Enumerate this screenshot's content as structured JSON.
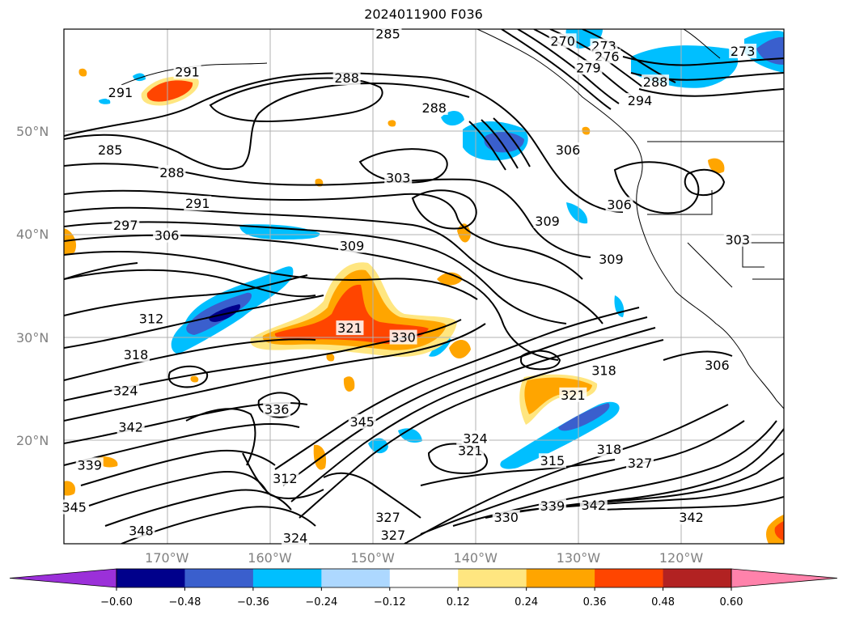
{
  "title": "2024011900 F036",
  "lat_labels": [
    "50°N",
    "40°N",
    "30°N",
    "20°N"
  ],
  "lon_labels": [
    "170°W",
    "160°W",
    "150°W",
    "140°W",
    "130°W",
    "120°W"
  ],
  "colorbar": {
    "ticks": [
      "−0.60",
      "−0.48",
      "−0.36",
      "−0.24",
      "−0.12",
      "0.12",
      "0.24",
      "0.36",
      "0.48",
      "0.60"
    ],
    "colors": [
      "#9b30d9",
      "#00008b",
      "#3a5fcd",
      "#00bfff",
      "#add8ff",
      "#ffffff",
      "#ffe680",
      "#ffa500",
      "#ff4500",
      "#b22222",
      "#ff82ab"
    ]
  },
  "contour_labels": [
    {
      "text": "285",
      "lat": 59.5,
      "lon": -148.5
    },
    {
      "text": "270",
      "lat": 58.8,
      "lon": -131.5
    },
    {
      "text": "273",
      "lat": 58.3,
      "lon": -127.5
    },
    {
      "text": "276",
      "lat": 57.3,
      "lon": -127.2
    },
    {
      "text": "279",
      "lat": 56.2,
      "lon": -129.0
    },
    {
      "text": "273",
      "lat": 57.8,
      "lon": -114.0
    },
    {
      "text": "288",
      "lat": 54.8,
      "lon": -122.5
    },
    {
      "text": "294",
      "lat": 53.0,
      "lon": -124.0
    },
    {
      "text": "291",
      "lat": 55.8,
      "lon": -168.0
    },
    {
      "text": "291",
      "lat": 53.8,
      "lon": -174.5
    },
    {
      "text": "288",
      "lat": 55.2,
      "lon": -152.5
    },
    {
      "text": "288",
      "lat": 52.3,
      "lon": -144.0
    },
    {
      "text": "285",
      "lat": 48.2,
      "lon": -175.5
    },
    {
      "text": "288",
      "lat": 46.0,
      "lon": -169.5
    },
    {
      "text": "303",
      "lat": 45.5,
      "lon": -147.5
    },
    {
      "text": "306",
      "lat": 48.2,
      "lon": -131.0
    },
    {
      "text": "306",
      "lat": 42.9,
      "lon": -126.0
    },
    {
      "text": "291",
      "lat": 43.0,
      "lon": -167.0
    },
    {
      "text": "297",
      "lat": 40.9,
      "lon": -174.0
    },
    {
      "text": "306",
      "lat": 39.9,
      "lon": -170.0
    },
    {
      "text": "309",
      "lat": 38.9,
      "lon": -152.0
    },
    {
      "text": "309",
      "lat": 41.3,
      "lon": -133.0
    },
    {
      "text": "309",
      "lat": 37.6,
      "lon": -126.8
    },
    {
      "text": "303",
      "lat": 39.5,
      "lon": -114.5
    },
    {
      "text": "312",
      "lat": 31.8,
      "lon": -171.5
    },
    {
      "text": "321",
      "lat": 30.9,
      "lon": -152.2
    },
    {
      "text": "330",
      "lat": 30.0,
      "lon": -147.0
    },
    {
      "text": "318",
      "lat": 28.3,
      "lon": -173.0
    },
    {
      "text": "318",
      "lat": 26.8,
      "lon": -127.5
    },
    {
      "text": "306",
      "lat": 27.3,
      "lon": -116.5
    },
    {
      "text": "324",
      "lat": 24.8,
      "lon": -174.0
    },
    {
      "text": "321",
      "lat": 24.4,
      "lon": -130.5
    },
    {
      "text": "336",
      "lat": 23.0,
      "lon": -159.3
    },
    {
      "text": "342",
      "lat": 21.3,
      "lon": -173.5
    },
    {
      "text": "345",
      "lat": 21.8,
      "lon": -151.0
    },
    {
      "text": "324",
      "lat": 20.2,
      "lon": -140.0
    },
    {
      "text": "321",
      "lat": 19.0,
      "lon": -140.5
    },
    {
      "text": "315",
      "lat": 18.0,
      "lon": -132.5
    },
    {
      "text": "318",
      "lat": 19.1,
      "lon": -127.0
    },
    {
      "text": "327",
      "lat": 17.8,
      "lon": -124.0
    },
    {
      "text": "339",
      "lat": 17.6,
      "lon": -177.5
    },
    {
      "text": "312",
      "lat": 16.3,
      "lon": -158.5
    },
    {
      "text": "345",
      "lat": 13.5,
      "lon": -179.0
    },
    {
      "text": "339",
      "lat": 13.6,
      "lon": -132.5
    },
    {
      "text": "342",
      "lat": 13.7,
      "lon": -128.5
    },
    {
      "text": "330",
      "lat": 12.5,
      "lon": -137.0
    },
    {
      "text": "327",
      "lat": 12.5,
      "lon": -148.5
    },
    {
      "text": "327",
      "lat": 10.8,
      "lon": -148.0
    },
    {
      "text": "342",
      "lat": 12.5,
      "lon": -119.0
    },
    {
      "text": "348",
      "lat": 11.2,
      "lon": -172.5
    },
    {
      "text": "324",
      "lat": 10.5,
      "lon": -157.5
    }
  ]
}
